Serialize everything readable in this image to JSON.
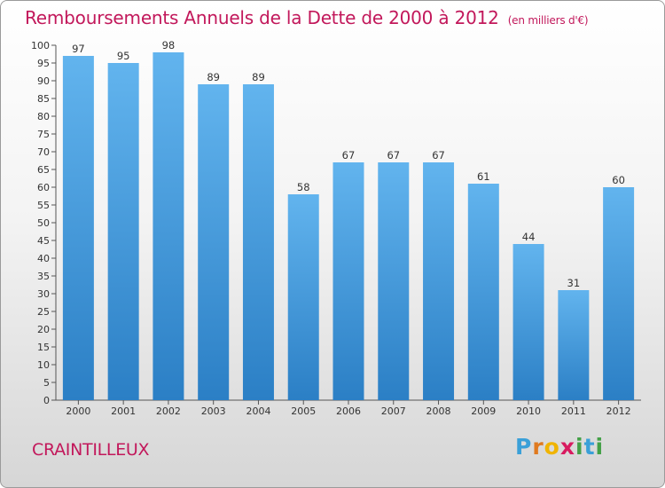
{
  "title": "Remboursements Annuels de la Dette de 2000 à 2012",
  "unit": "(en milliers d'€)",
  "town": "CRAINTILLEUX",
  "logo": {
    "letters": [
      "P",
      "r",
      "o",
      "x",
      "i",
      "t",
      "i"
    ],
    "colors": [
      "#3aa0d8",
      "#e07a1f",
      "#f0b400",
      "#d81b60",
      "#43a047",
      "#3aa0d8",
      "#43a047"
    ]
  },
  "colors": {
    "title": "#c2185b",
    "bar_light": "#62b4ee",
    "bar_dark": "#2b7fc5",
    "text": "#333333"
  },
  "chart_data": {
    "type": "bar",
    "categories": [
      "2000",
      "2001",
      "2002",
      "2003",
      "2004",
      "2005",
      "2006",
      "2007",
      "2008",
      "2009",
      "2010",
      "2011",
      "2012"
    ],
    "values": [
      97,
      95,
      98,
      89,
      89,
      58,
      67,
      67,
      67,
      61,
      44,
      31,
      60
    ],
    "ylim": [
      0,
      100
    ],
    "yticks": [
      0,
      5,
      10,
      15,
      20,
      25,
      30,
      35,
      40,
      45,
      50,
      55,
      60,
      65,
      70,
      75,
      80,
      85,
      90,
      95,
      100
    ],
    "grid": false,
    "data_labels": true
  }
}
